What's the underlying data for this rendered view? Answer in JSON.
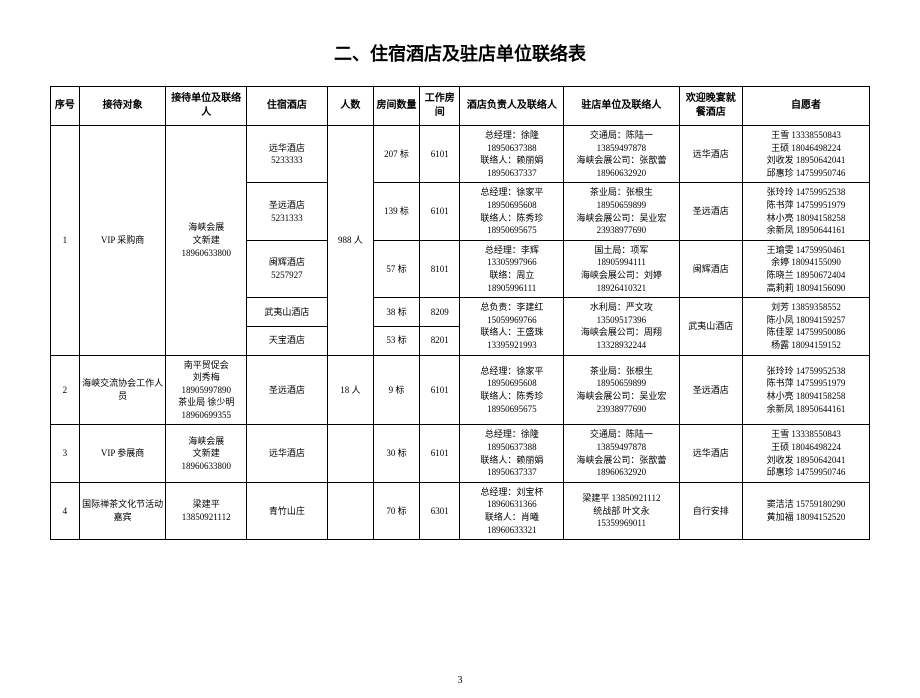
{
  "doc_title": "二、住宿酒店及驻店单位联络表",
  "page_number": "3",
  "headers": {
    "seq": "序号",
    "obj": "接待对象",
    "unit": "接待单位及联络人",
    "hotel": "住宿酒店",
    "count": "人数",
    "rooms": "房间数量",
    "work": "工作房间",
    "mgr": "酒店负责人及联络人",
    "station": "驻店单位及联络人",
    "dinner": "欢迎晚宴就餐酒店",
    "vol": "自愿者"
  },
  "rows": [
    {
      "seq": "1",
      "obj": "VIP 采购商",
      "unit": "海峡会展\n文新建\n18960633800",
      "count": "988 人",
      "sub": [
        {
          "hotel": "远华酒店\n5233333",
          "rooms": "207 标",
          "work": "6101",
          "mgr": "总经理：徐隆\n18950637388\n联络人：赖丽娟\n18950637337",
          "station": "交通局：陈陆一\n13859497878\n海峡会展公司：张歆蕾\n18960632920",
          "dinner": "远华酒店",
          "vol": "王雪 13338550843\n王硕 18046498224\n刘收发 18950642041\n邱惠珍 14759950746"
        },
        {
          "hotel": "圣远酒店\n5231333",
          "rooms": "139 标",
          "work": "6101",
          "mgr": "总经理：徐家平\n18950695608\n联络人：陈秀珍\n18950695675",
          "station": "茶业局：张根生\n18950659899\n海峡会展公司：吴业宏\n23938977690",
          "dinner": "圣远酒店",
          "vol": "张玲玲 14759952538\n陈书萍 14759951979\n林小亮 18094158258\n余新凤 18950644161"
        },
        {
          "hotel": "闽辉酒店\n5257927",
          "rooms": "57 标",
          "work": "8101",
          "mgr": "总经理：李辉\n13305997966\n联络：周立\n18905996111",
          "station": "国土局：项军\n18905994111\n海峡会展公司：刘婷\n18926410321",
          "dinner": "闽辉酒店",
          "vol": "王瑜雯 14759950461\n余婷 18094155090\n陈晓兰 18950672404\n高莉莉 18094156090"
        },
        {
          "hotel": "武夷山酒店",
          "rooms": "38 标",
          "work": "8209",
          "mgr": "总负责：李建红\n15059969766\n联络人：王盛珠\n13395921993",
          "station": "水利局：严文攻\n13509517396\n海峡会展公司：周翔\n13328932244",
          "dinner": "武夷山酒店",
          "vol": "刘芳 13859358552\n陈小凤 18094159257\n陈佳翠 14759950086\n杨露 18094159152",
          "mgr_span": 2,
          "station_span": 2,
          "dinner_span": 2,
          "vol_span": 2
        },
        {
          "hotel": "天宝酒店",
          "rooms": "53 标",
          "work": "8201"
        }
      ]
    },
    {
      "seq": "2",
      "obj": "海峡交流协会工作人员",
      "unit": "南平贸促会\n刘秀梅\n18905997890\n茶业局 徐少明\n18960699355",
      "count": "18 人",
      "sub": [
        {
          "hotel": "圣远酒店",
          "rooms": "9 标",
          "work": "6101",
          "mgr": "总经理：徐家平\n18950695608\n联络人：陈秀珍\n18950695675",
          "station": "茶业局：张根生\n18950659899\n海峡会展公司：吴业宏\n23938977690",
          "dinner": "圣远酒店",
          "vol": "张玲玲 14759952538\n陈书萍 14759951979\n林小亮 18094158258\n余新凤 18950644161"
        }
      ]
    },
    {
      "seq": "3",
      "obj": "VIP 参展商",
      "unit": "海峡会展\n文新建\n18960633800",
      "count": "",
      "sub": [
        {
          "hotel": "远华酒店",
          "rooms": "30 标",
          "work": "6101",
          "mgr": "总经理：徐隆\n18950637388\n联络人：赖丽娟\n18950637337",
          "station": "交通局：陈陆一\n13859497878\n海峡会展公司：张歆蕾\n18960632920",
          "dinner": "远华酒店",
          "vol": "王雪 13338550843\n王硕 18046498224\n刘收发 18950642041\n邱惠珍 14759950746"
        }
      ]
    },
    {
      "seq": "4",
      "obj": "国际禅茶文化节活动嘉宾",
      "unit": "梁建平\n13850921112",
      "count": "",
      "sub": [
        {
          "hotel": "青竹山庄",
          "rooms": "70 标",
          "work": "6301",
          "mgr": "总经理：刘宝杯\n18960631366\n联络人：肖曦\n18960633321",
          "station": "梁建平 13850921112\n统战部 叶文永\n15359969011",
          "dinner": "自行安排",
          "vol": "窦洁洁 15759180290\n黄加福 18094152520"
        }
      ]
    }
  ]
}
